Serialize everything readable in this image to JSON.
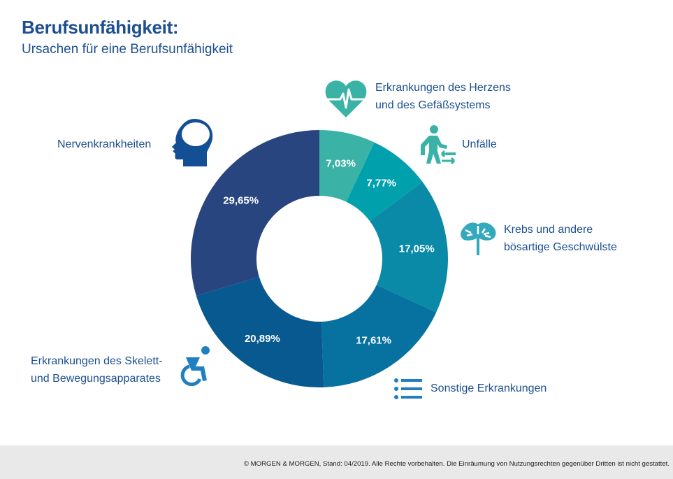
{
  "header": {
    "title": "Berufsunfähigkeit:",
    "subtitle": "Ursachen für eine Berufsunfähigkeit"
  },
  "chart_data": {
    "type": "pie",
    "donut": true,
    "title": "Berufsunfähigkeit:",
    "subtitle": "Ursachen für eine Berufsunfähigkeit",
    "start_angle_deg": 0,
    "direction": "clockwise",
    "slices": [
      {
        "label": "Erkrankungen des Herzens und des Gefäßsystems",
        "value": 7.03,
        "display": "7,03%",
        "color": "#3bb2a6",
        "icon": "heart-pulse-icon"
      },
      {
        "label": "Unfälle",
        "value": 7.77,
        "display": "7,77%",
        "color": "#00a1ad",
        "icon": "walking-person-arrows-icon"
      },
      {
        "label": "Krebs und andere bösartige Geschwülste",
        "value": 17.05,
        "display": "17,05%",
        "color": "#0a8aa6",
        "icon": "tree-tumor-icon"
      },
      {
        "label": "Sonstige Erkrankungen",
        "value": 17.61,
        "display": "17,61%",
        "color": "#0771a0",
        "icon": "list-icon"
      },
      {
        "label": "Erkrankungen des Skelett- und Bewegungsapparates",
        "value": 20.89,
        "display": "20,89%",
        "color": "#07598f",
        "icon": "wheelchair-icon"
      },
      {
        "label": "Nervenkrankheiten",
        "value": 29.65,
        "display": "29,65%",
        "color": "#29457f",
        "icon": "head-brain-icon"
      }
    ]
  },
  "labels": {
    "heart_line1": "Erkrankungen des Herzens",
    "heart_line2": "und des Gefäßsystems",
    "accidents": "Unfälle",
    "cancer_line1": "Krebs und andere",
    "cancer_line2": "bösartige Geschwülste",
    "other": "Sonstige Erkrankungen",
    "skeletal_line1": "Erkrankungen des Skelett-",
    "skeletal_line2": "und Bewegungsapparates",
    "nerves": "Nervenkrankheiten"
  },
  "colors": {
    "text_primary": "#1d4f91",
    "icon_teal": "#3bb2a6",
    "icon_cyan": "#33a9bd",
    "icon_blue": "#1f7fc1",
    "icon_navy": "#124f95"
  },
  "footer": {
    "copyright": "© MORGEN & MORGEN, Stand: 04/2019. Alle Rechte vorbehalten. Die Einräumung von Nutzungsrechten gegenüber Dritten ist nicht gestattet."
  }
}
